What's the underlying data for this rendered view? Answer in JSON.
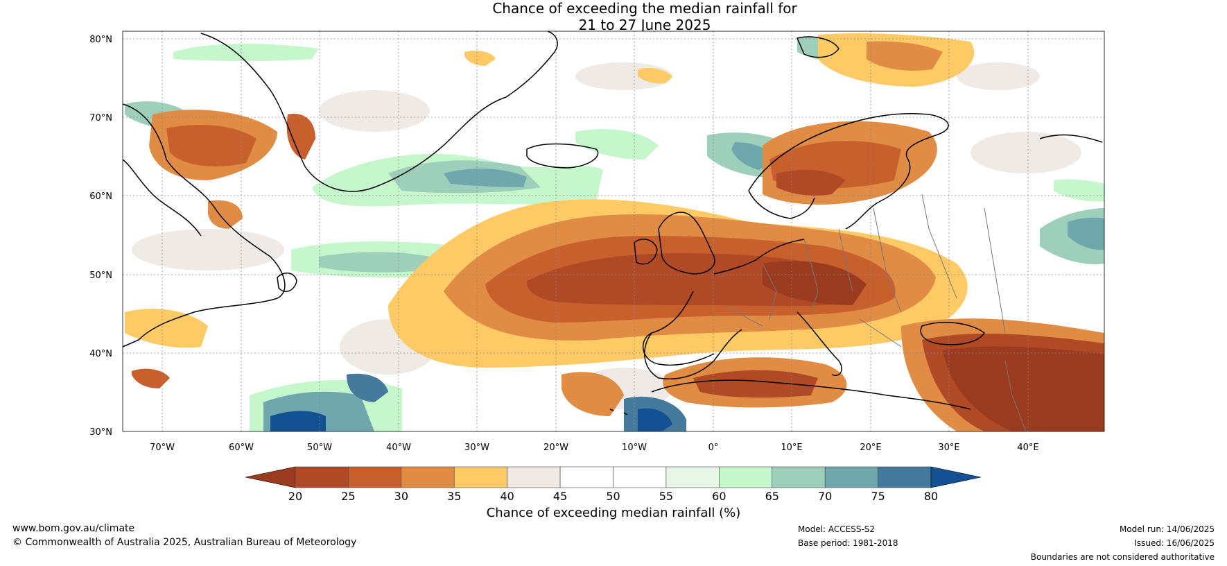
{
  "title": {
    "line1": "Chance of exceeding the median rainfall for",
    "line2": "21 to 27 June 2025"
  },
  "axes": {
    "lat_labels": [
      "80°N",
      "70°N",
      "60°N",
      "50°N",
      "40°N",
      "30°N"
    ],
    "lon_labels": [
      "70°W",
      "60°W",
      "50°W",
      "40°W",
      "30°W",
      "20°W",
      "10°W",
      "0°",
      "10°E",
      "20°E",
      "30°E",
      "40°E"
    ]
  },
  "colorbar": {
    "tick_labels": [
      "20",
      "25",
      "30",
      "35",
      "40",
      "45",
      "50",
      "55",
      "60",
      "65",
      "70",
      "75",
      "80"
    ],
    "colors": [
      "#9a3a1e",
      "#b04a26",
      "#c8602e",
      "#e08c44",
      "#fdca66",
      "#efeae6",
      "#ffffff",
      "#ffffff",
      "#e8f6e8",
      "#c5f6cc",
      "#9ecfba",
      "#6fa7ad",
      "#457a9c",
      "#145193"
    ],
    "label": "Chance of exceeding median rainfall (%)"
  },
  "footer": {
    "website": "www.bom.gov.au/climate",
    "copyright": "© Commonwealth of Australia 2025, Australian Bureau of Meteorology",
    "model": "Model: ACCESS-S2",
    "base_period": "Base period: 1981-2018",
    "model_run": "Model run: 14/06/2025",
    "issued": "Issued: 16/06/2025",
    "disclaimer": "Boundaries are not considered authoritative"
  }
}
